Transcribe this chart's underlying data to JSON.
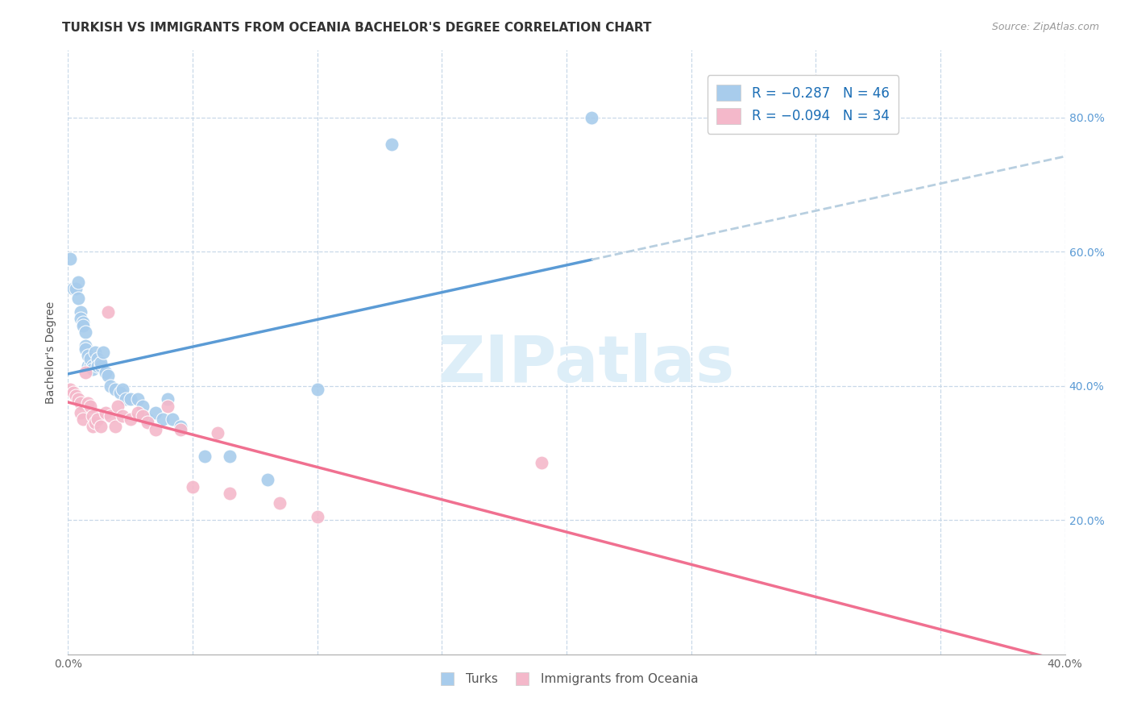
{
  "title": "TURKISH VS IMMIGRANTS FROM OCEANIA BACHELOR'S DEGREE CORRELATION CHART",
  "source": "Source: ZipAtlas.com",
  "ylabel": "Bachelor's Degree",
  "xlim": [
    0.0,
    0.4
  ],
  "ylim": [
    0.0,
    0.9
  ],
  "x_ticks": [
    0.0,
    0.05,
    0.1,
    0.15,
    0.2,
    0.25,
    0.3,
    0.35,
    0.4
  ],
  "x_tick_labels": [
    "0.0%",
    "",
    "",
    "",
    "",
    "",
    "",
    "",
    "40.0%"
  ],
  "y_ticks_right": [
    0.2,
    0.4,
    0.6,
    0.8
  ],
  "y_tick_labels_right": [
    "20.0%",
    "40.0%",
    "60.0%",
    "80.0%"
  ],
  "legend_blue_text": "R = −0.287   N = 46",
  "legend_pink_text": "R = −0.094   N = 34",
  "blue_color": "#a8ccec",
  "pink_color": "#f4b8ca",
  "blue_line_color": "#5b9bd5",
  "pink_line_color": "#f07090",
  "dashed_line_color": "#b8cfe0",
  "watermark_color": "#ddeef8",
  "blue_R": -0.287,
  "blue_N": 46,
  "pink_R": -0.094,
  "pink_N": 34,
  "turks_x": [
    0.001,
    0.002,
    0.003,
    0.004,
    0.004,
    0.005,
    0.005,
    0.006,
    0.006,
    0.007,
    0.007,
    0.007,
    0.008,
    0.008,
    0.009,
    0.009,
    0.01,
    0.01,
    0.011,
    0.012,
    0.012,
    0.013,
    0.013,
    0.014,
    0.015,
    0.016,
    0.017,
    0.019,
    0.021,
    0.022,
    0.023,
    0.025,
    0.028,
    0.03,
    0.032,
    0.035,
    0.038,
    0.04,
    0.042,
    0.045,
    0.055,
    0.065,
    0.08,
    0.1,
    0.13,
    0.21
  ],
  "turks_y": [
    0.59,
    0.545,
    0.545,
    0.555,
    0.53,
    0.51,
    0.5,
    0.495,
    0.49,
    0.48,
    0.46,
    0.455,
    0.445,
    0.43,
    0.43,
    0.44,
    0.43,
    0.425,
    0.45,
    0.44,
    0.43,
    0.43,
    0.435,
    0.45,
    0.42,
    0.415,
    0.4,
    0.395,
    0.39,
    0.395,
    0.38,
    0.38,
    0.38,
    0.37,
    0.35,
    0.36,
    0.35,
    0.38,
    0.35,
    0.34,
    0.295,
    0.295,
    0.26,
    0.395,
    0.76,
    0.8
  ],
  "oceania_x": [
    0.001,
    0.002,
    0.003,
    0.004,
    0.005,
    0.005,
    0.006,
    0.007,
    0.008,
    0.009,
    0.01,
    0.01,
    0.011,
    0.012,
    0.013,
    0.015,
    0.016,
    0.017,
    0.019,
    0.02,
    0.022,
    0.025,
    0.028,
    0.03,
    0.032,
    0.035,
    0.04,
    0.045,
    0.05,
    0.06,
    0.065,
    0.085,
    0.1,
    0.19
  ],
  "oceania_y": [
    0.395,
    0.39,
    0.385,
    0.38,
    0.375,
    0.36,
    0.35,
    0.42,
    0.375,
    0.37,
    0.355,
    0.34,
    0.345,
    0.35,
    0.34,
    0.36,
    0.51,
    0.355,
    0.34,
    0.37,
    0.355,
    0.35,
    0.36,
    0.355,
    0.345,
    0.335,
    0.37,
    0.335,
    0.25,
    0.33,
    0.24,
    0.225,
    0.205,
    0.285
  ],
  "background_color": "#ffffff",
  "plot_bg_color": "#ffffff",
  "grid_color": "#c8d8e8",
  "title_fontsize": 11,
  "axis_fontsize": 9
}
